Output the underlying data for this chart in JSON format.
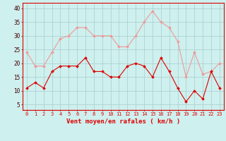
{
  "x": [
    0,
    1,
    2,
    3,
    4,
    5,
    6,
    7,
    8,
    9,
    10,
    11,
    12,
    13,
    14,
    15,
    16,
    17,
    18,
    19,
    20,
    21,
    22,
    23
  ],
  "wind_avg": [
    11,
    13,
    11,
    17,
    19,
    19,
    19,
    22,
    17,
    17,
    15,
    15,
    19,
    20,
    19,
    15,
    22,
    17,
    11,
    6,
    10,
    7,
    17,
    11
  ],
  "wind_gust": [
    24,
    19,
    19,
    24,
    29,
    30,
    33,
    33,
    30,
    30,
    30,
    26,
    26,
    30,
    35,
    39,
    35,
    33,
    28,
    15,
    24,
    16,
    17,
    20
  ],
  "avg_color": "#dd0000",
  "gust_color": "#ee9999",
  "bg_color": "#cef0ee",
  "grid_color": "#aacccc",
  "xlabel": "Vent moyen/en rafales ( km/h )",
  "xlabel_color": "#dd0000",
  "ylabel_ticks": [
    5,
    10,
    15,
    20,
    25,
    30,
    35,
    40
  ],
  "ylim": [
    3,
    42
  ],
  "xlim": [
    -0.5,
    23.5
  ]
}
